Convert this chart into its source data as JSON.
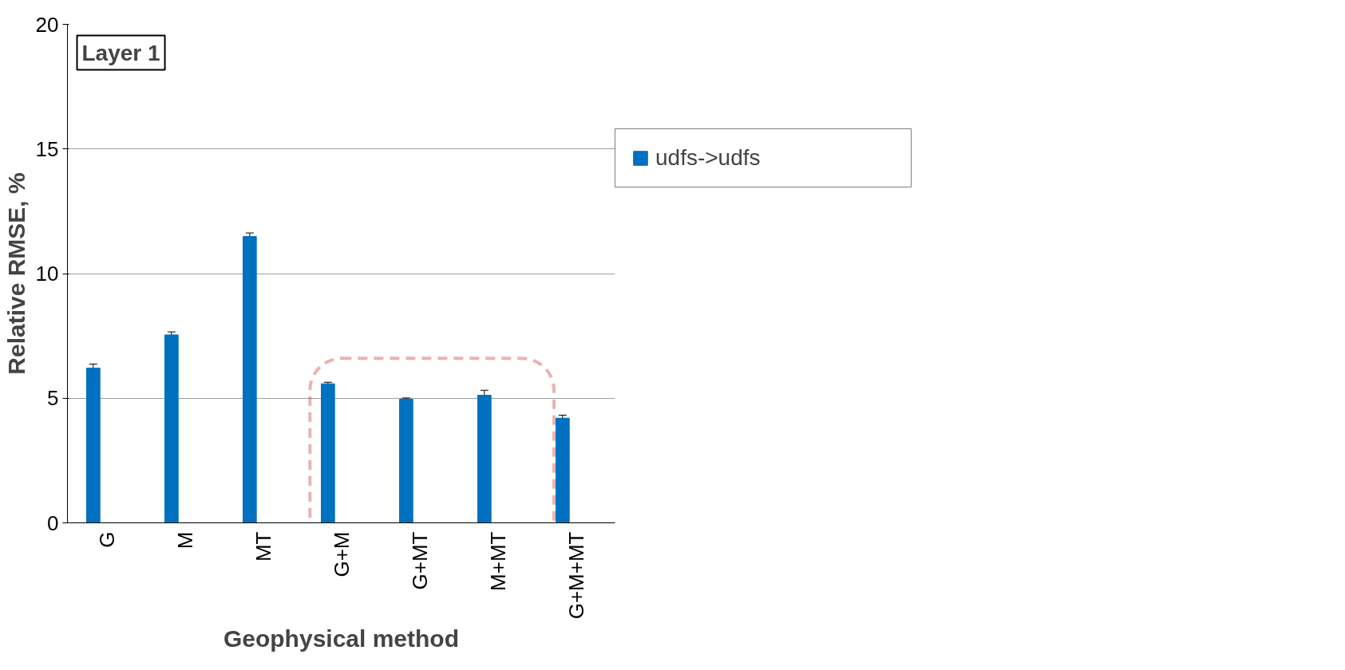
{
  "chart_data": {
    "type": "bar",
    "xlabel": "Geophysical method",
    "ylabel": "Relative RMSE, %",
    "annotations": [
      "Layer 1"
    ],
    "categories": [
      "G",
      "M",
      "MT",
      "G+M",
      "G+MT",
      "M+MT",
      "G+M+MT"
    ],
    "series": [
      {
        "name": "udfs->udfs",
        "color": "#0070c0",
        "values": [
          6.21,
          7.54,
          11.49,
          5.58,
          4.96,
          5.12,
          4.2
        ],
        "errors": [
          0.16,
          0.12,
          0.14,
          0.06,
          0.05,
          0.2,
          0.12
        ]
      }
    ],
    "ylim": [
      0,
      20
    ],
    "yticks": [
      0,
      5,
      10,
      15,
      20
    ],
    "grid": "y",
    "legend": "right"
  }
}
